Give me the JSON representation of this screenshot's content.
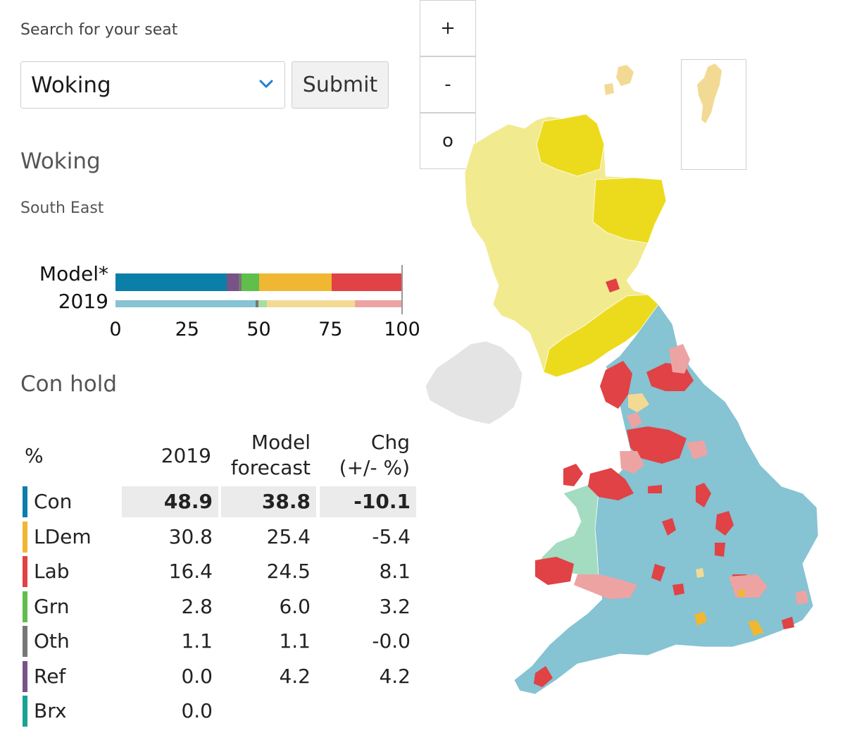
{
  "search": {
    "label": "Search for your seat",
    "selected": "Woking",
    "submit_label": "Submit"
  },
  "seat": {
    "name": "Woking",
    "region": "South East",
    "result": "Con hold"
  },
  "colors": {
    "con": "#0b7fa8",
    "con_light": "#86c3d3",
    "ldem": "#efb732",
    "ldem_light": "#f3da94",
    "lab": "#e04245",
    "lab_light": "#eea3a3",
    "grn": "#5fbe4c",
    "grn_light": "#a7dca2",
    "oth": "#777777",
    "ref": "#775386",
    "brx": "#1aa393",
    "snp": "#ecdb1d",
    "snp_light": "#f2ea8e",
    "pc": "#a3dcc0",
    "ni": "#e4e4e4"
  },
  "bars": {
    "model_label": "Model*",
    "y2019_label": "2019",
    "ticks": [
      "0",
      "25",
      "50",
      "75",
      "100"
    ],
    "model": [
      {
        "party": "con",
        "value": 38.8
      },
      {
        "party": "ref",
        "value": 4.2
      },
      {
        "party": "oth",
        "value": 1.1
      },
      {
        "party": "grn",
        "value": 6.0
      },
      {
        "party": "ldem",
        "value": 25.4
      },
      {
        "party": "lab",
        "value": 24.5
      }
    ],
    "y2019": [
      {
        "party": "con_light",
        "value": 48.9
      },
      {
        "party": "oth",
        "value": 1.1
      },
      {
        "party": "grn_light",
        "value": 2.8
      },
      {
        "party": "ldem_light",
        "value": 30.8
      },
      {
        "party": "lab_light",
        "value": 16.4
      }
    ]
  },
  "table": {
    "headers": {
      "pct": "%",
      "y2019": "2019",
      "model_l1": "Model",
      "model_l2": "forecast",
      "chg_l1": "Chg",
      "chg_l2": "(+/- %)"
    },
    "rows": [
      {
        "party": "Con",
        "color": "#0b7fa8",
        "y2019": "48.9",
        "model": "38.8",
        "chg": "-10.1"
      },
      {
        "party": "LDem",
        "color": "#efb732",
        "y2019": "30.8",
        "model": "25.4",
        "chg": "-5.4"
      },
      {
        "party": "Lab",
        "color": "#e04245",
        "y2019": "16.4",
        "model": "24.5",
        "chg": "8.1"
      },
      {
        "party": "Grn",
        "color": "#5fbe4c",
        "y2019": "2.8",
        "model": "6.0",
        "chg": "3.2"
      },
      {
        "party": "Oth",
        "color": "#777777",
        "y2019": "1.1",
        "model": "1.1",
        "chg": "-0.0"
      },
      {
        "party": "Ref",
        "color": "#775386",
        "y2019": "0.0",
        "model": "4.2",
        "chg": "4.2"
      },
      {
        "party": "Brx",
        "color": "#1aa393",
        "y2019": "0.0",
        "model": "",
        "chg": ""
      }
    ]
  },
  "zoom": {
    "in_label": "+",
    "out_label": "-",
    "reset_label": "o"
  }
}
